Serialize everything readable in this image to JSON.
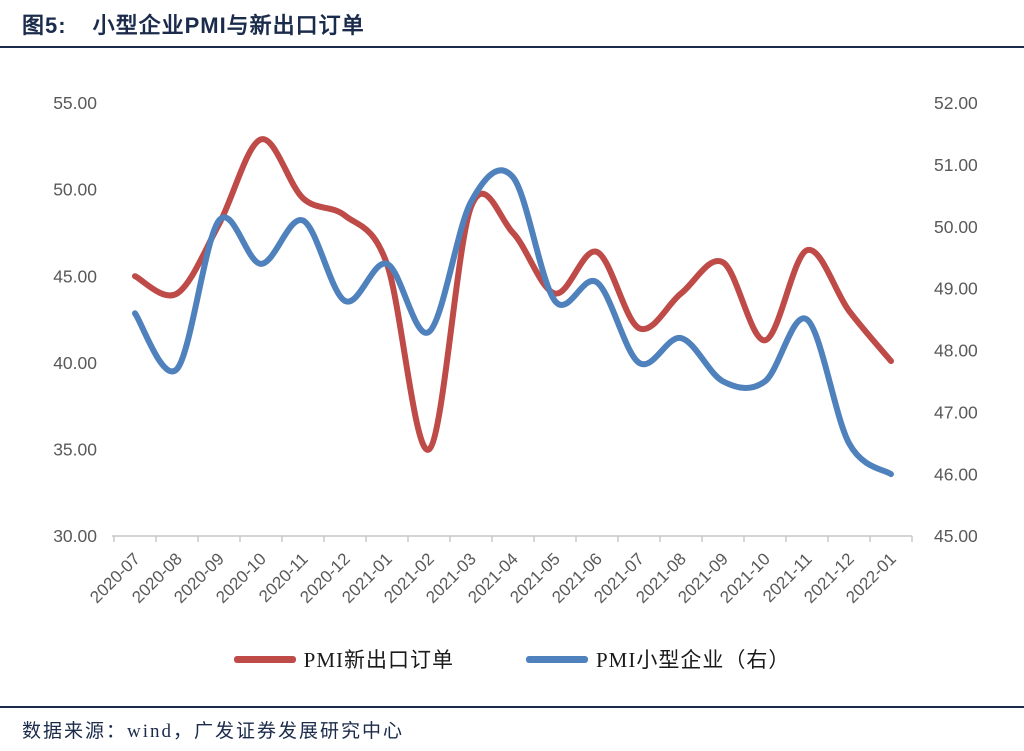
{
  "header": {
    "figure_label": "图5:",
    "title": "小型企业PMI与新出口订单"
  },
  "footer": {
    "source": "数据来源：wind，广发证券发展研究中心"
  },
  "colors": {
    "red_series": "#BE4B48",
    "blue_series": "#4F81BD",
    "axis_text": "#595959",
    "axis_line": "#C6C6C6",
    "heading_navy": "#1B2B4B",
    "legend_text": "#1A1A1A"
  },
  "chart_data": {
    "type": "line",
    "title": "小型企业PMI与新出口订单",
    "smooth": true,
    "grid": false,
    "legend_position": "bottom",
    "categories": [
      "2020-07",
      "2020-08",
      "2020-09",
      "2020-10",
      "2020-11",
      "2020-12",
      "2021-01",
      "2021-02",
      "2021-03",
      "2021-04",
      "2021-05",
      "2021-06",
      "2021-07",
      "2021-08",
      "2021-09",
      "2021-10",
      "2021-11",
      "2021-12",
      "2022-01"
    ],
    "series": [
      {
        "name": "PMI新出口订单",
        "axis": "left",
        "color": "#BE4B48",
        "values": [
          45.0,
          44.0,
          48.0,
          52.9,
          49.5,
          48.5,
          45.7,
          35.0,
          49.0,
          47.5,
          44.0,
          46.4,
          42.0,
          44.0,
          45.8,
          41.3,
          46.5,
          43.0,
          40.1
        ]
      },
      {
        "name": "PMI小型企业（右）",
        "axis": "right",
        "color": "#4F81BD",
        "values": [
          48.6,
          47.7,
          50.1,
          49.4,
          50.1,
          48.8,
          49.4,
          48.3,
          50.4,
          50.8,
          48.8,
          49.1,
          47.8,
          48.2,
          47.5,
          47.5,
          48.5,
          46.5,
          46.0
        ]
      }
    ],
    "left_axis": {
      "min": 30,
      "max": 55,
      "step": 5,
      "tick_labels": [
        "55.00",
        "50.00",
        "45.00",
        "40.00",
        "35.00",
        "30.00"
      ]
    },
    "right_axis": {
      "min": 45,
      "max": 52,
      "step": 1,
      "tick_labels": [
        "52.00",
        "51.00",
        "50.00",
        "49.00",
        "48.00",
        "47.00",
        "46.00",
        "45.00"
      ]
    }
  }
}
